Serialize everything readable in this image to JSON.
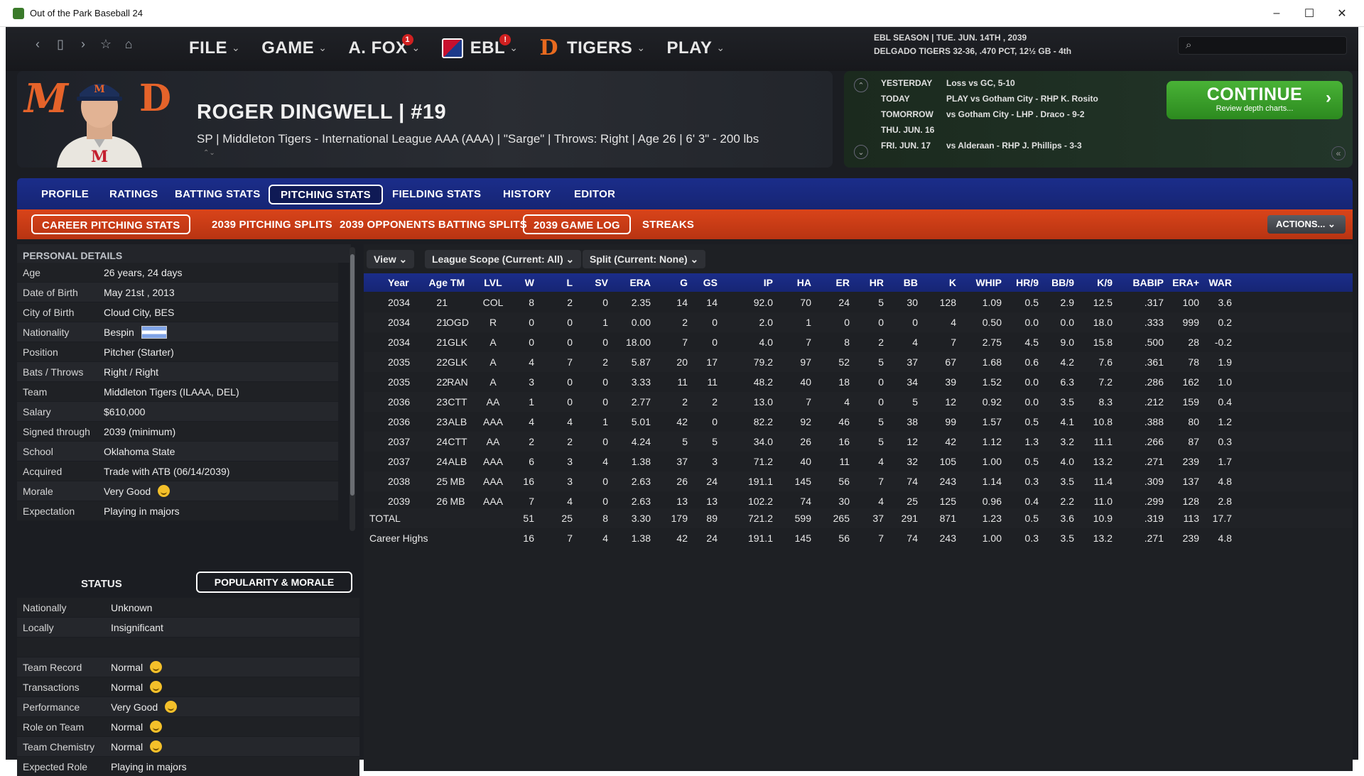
{
  "window": {
    "title": "Out of the Park Baseball 24",
    "min": "–",
    "max": "☐",
    "close": "✕"
  },
  "nav": {
    "back": "‹",
    "page": "▯",
    "fwd": "›",
    "star": "☆",
    "home": "⌂"
  },
  "menu": {
    "file": "FILE",
    "game": "GAME",
    "afox": "A. FOX",
    "afox_badge": "1",
    "ebl": "EBL",
    "ebl_badge": "!",
    "tigers": "TIGERS",
    "play": "PLAY",
    "chev": "⌄"
  },
  "season": {
    "line1": "EBL SEASON  |  TUE. JUN. 14TH , 2039",
    "line2": "DELGADO TIGERS  32-36, .470 PCT, 12½ GB - 4th"
  },
  "player": {
    "name": "ROGER DINGWELL  |  #19",
    "info": "SP | Middleton Tigers - International League AAA (AAA)  |  \"Sarge\" | Throws: Right  |  Age 26  |  6' 3\" - 200 lbs",
    "logo_m": "M",
    "logo_d": "D",
    "arrows": "⌃⌄"
  },
  "schedule": {
    "rows": [
      {
        "day": "YESTERDAY",
        "text": "Loss vs GC, 5-10"
      },
      {
        "day": "TODAY",
        "text": "PLAY vs Gotham City - RHP K. Rosito"
      },
      {
        "day": "TOMORROW",
        "text": "vs Gotham City - LHP  . Draco - 9-2"
      },
      {
        "day": "THU. JUN. 16",
        "text": ""
      },
      {
        "day": "FRI. JUN. 17",
        "text": "vs Alderaan - RHP J. Phillips - 3-3"
      }
    ],
    "continue": "CONTINUE",
    "continue_sub": "Review depth charts...",
    "arrow": "›",
    "up": "⌃",
    "down": "⌄",
    "collapse": "«"
  },
  "tabs": [
    "PROFILE",
    "RATINGS",
    "BATTING STATS",
    "PITCHING STATS",
    "FIELDING STATS",
    "HISTORY",
    "EDITOR"
  ],
  "subtabs": [
    "CAREER PITCHING STATS",
    "2039 PITCHING SPLITS",
    "2039 OPPONENTS BATTING SPLITS",
    "2039 GAME LOG",
    "STREAKS"
  ],
  "actions": "ACTIONS...  ⌄",
  "personal": {
    "header": "PERSONAL DETAILS",
    "rows": [
      {
        "k": "Age",
        "v": "26 years, 24 days"
      },
      {
        "k": "Date of Birth",
        "v": "May 21st , 2013"
      },
      {
        "k": "City of Birth",
        "v": "Cloud City, BES"
      },
      {
        "k": "Nationality",
        "v": "Bespin"
      },
      {
        "k": "Position",
        "v": "Pitcher (Starter)"
      },
      {
        "k": "Bats / Throws",
        "v": "Right / Right"
      },
      {
        "k": "Team",
        "v": "Middleton Tigers (ILAAA, DEL)"
      },
      {
        "k": "Salary",
        "v": "$610,000"
      },
      {
        "k": "Signed through",
        "v": "2039 (minimum)"
      },
      {
        "k": "School",
        "v": "Oklahoma State"
      },
      {
        "k": "Acquired",
        "v": "Trade with ATB (06/14/2039)"
      },
      {
        "k": "Morale",
        "v": "Very Good"
      },
      {
        "k": "Expectation",
        "v": "Playing in majors"
      }
    ]
  },
  "status": {
    "label": "STATUS",
    "pm": "POPULARITY & MORALE",
    "rows": [
      {
        "k": "Nationally",
        "v": "Unknown"
      },
      {
        "k": "Locally",
        "v": "Insignificant"
      },
      {
        "k": "",
        "v": ""
      },
      {
        "k": "Team Record",
        "v": "Normal"
      },
      {
        "k": "Transactions",
        "v": "Normal"
      },
      {
        "k": "Performance",
        "v": "Very Good"
      },
      {
        "k": "Role on Team",
        "v": "Normal"
      },
      {
        "k": "Team Chemistry",
        "v": "Normal"
      },
      {
        "k": "Expected Role",
        "v": "Playing in majors"
      }
    ]
  },
  "filters": {
    "view": "View  ⌄",
    "scope": "League Scope (Current: All)  ⌄",
    "split": "Split (Current: None)  ⌄"
  },
  "table": {
    "headers": [
      "Year",
      "Age",
      "TM",
      "LVL",
      "W",
      "L",
      "SV",
      "ERA",
      "G",
      "GS",
      "IP",
      "HA",
      "ER",
      "HR",
      "BB",
      "K",
      "WHIP",
      "HR/9",
      "BB/9",
      "K/9",
      "BABIP",
      "ERA+",
      "WAR"
    ],
    "rows": [
      [
        "2034",
        "21",
        "",
        "COL",
        "8",
        "2",
        "0",
        "2.35",
        "14",
        "14",
        "92.0",
        "70",
        "24",
        "5",
        "30",
        "128",
        "1.09",
        "0.5",
        "2.9",
        "12.5",
        ".317",
        "100",
        "3.6"
      ],
      [
        "2034",
        "21",
        "OGD",
        "R",
        "0",
        "0",
        "1",
        "0.00",
        "2",
        "0",
        "2.0",
        "1",
        "0",
        "0",
        "0",
        "4",
        "0.50",
        "0.0",
        "0.0",
        "18.0",
        ".333",
        "999",
        "0.2"
      ],
      [
        "2034",
        "21",
        "GLK",
        "A",
        "0",
        "0",
        "0",
        "18.00",
        "7",
        "0",
        "4.0",
        "7",
        "8",
        "2",
        "4",
        "7",
        "2.75",
        "4.5",
        "9.0",
        "15.8",
        ".500",
        "28",
        "-0.2"
      ],
      [
        "2035",
        "22",
        "GLK",
        "A",
        "4",
        "7",
        "2",
        "5.87",
        "20",
        "17",
        "79.2",
        "97",
        "52",
        "5",
        "37",
        "67",
        "1.68",
        "0.6",
        "4.2",
        "7.6",
        ".361",
        "78",
        "1.9"
      ],
      [
        "2035",
        "22",
        "RAN",
        "A",
        "3",
        "0",
        "0",
        "3.33",
        "11",
        "11",
        "48.2",
        "40",
        "18",
        "0",
        "34",
        "39",
        "1.52",
        "0.0",
        "6.3",
        "7.2",
        ".286",
        "162",
        "1.0"
      ],
      [
        "2036",
        "23",
        "CTT",
        "AA",
        "1",
        "0",
        "0",
        "2.77",
        "2",
        "2",
        "13.0",
        "7",
        "4",
        "0",
        "5",
        "12",
        "0.92",
        "0.0",
        "3.5",
        "8.3",
        ".212",
        "159",
        "0.4"
      ],
      [
        "2036",
        "23",
        "ALB",
        "AAA",
        "4",
        "4",
        "1",
        "5.01",
        "42",
        "0",
        "82.2",
        "92",
        "46",
        "5",
        "38",
        "99",
        "1.57",
        "0.5",
        "4.1",
        "10.8",
        ".388",
        "80",
        "1.2"
      ],
      [
        "2037",
        "24",
        "CTT",
        "AA",
        "2",
        "2",
        "0",
        "4.24",
        "5",
        "5",
        "34.0",
        "26",
        "16",
        "5",
        "12",
        "42",
        "1.12",
        "1.3",
        "3.2",
        "11.1",
        ".266",
        "87",
        "0.3"
      ],
      [
        "2037",
        "24",
        "ALB",
        "AAA",
        "6",
        "3",
        "4",
        "1.38",
        "37",
        "3",
        "71.2",
        "40",
        "11",
        "4",
        "32",
        "105",
        "1.00",
        "0.5",
        "4.0",
        "13.2",
        ".271",
        "239",
        "1.7"
      ],
      [
        "2038",
        "25",
        "MB",
        "AAA",
        "16",
        "3",
        "0",
        "2.63",
        "26",
        "24",
        "191.1",
        "145",
        "56",
        "7",
        "74",
        "243",
        "1.14",
        "0.3",
        "3.5",
        "11.4",
        ".309",
        "137",
        "4.8"
      ],
      [
        "2039",
        "26",
        "MB",
        "AAA",
        "7",
        "4",
        "0",
        "2.63",
        "13",
        "13",
        "102.2",
        "74",
        "30",
        "4",
        "25",
        "125",
        "0.96",
        "0.4",
        "2.2",
        "11.0",
        ".299",
        "128",
        "2.8"
      ]
    ],
    "total": [
      "TOTAL",
      "",
      "",
      "",
      "51",
      "25",
      "8",
      "3.30",
      "179",
      "89",
      "721.2",
      "599",
      "265",
      "37",
      "291",
      "871",
      "1.23",
      "0.5",
      "3.6",
      "10.9",
      ".319",
      "113",
      "17.7"
    ],
    "highs": [
      "Career Highs",
      "",
      "",
      "",
      "16",
      "7",
      "4",
      "1.38",
      "42",
      "24",
      "191.1",
      "145",
      "56",
      "7",
      "74",
      "243",
      "1.00",
      "0.3",
      "3.5",
      "13.2",
      ".271",
      "239",
      "4.8"
    ]
  }
}
